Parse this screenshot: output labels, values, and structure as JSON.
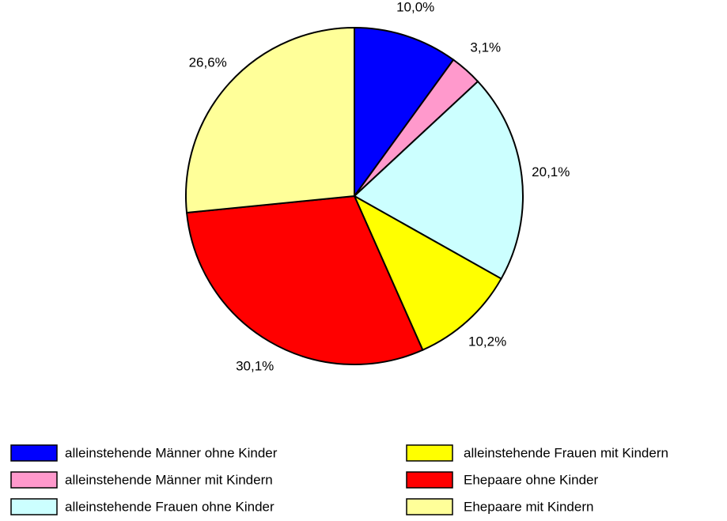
{
  "chart_data": {
    "type": "pie",
    "categories": [
      "alleinstehende Männer ohne Kinder",
      "alleinstehende Männer mit Kindern",
      "alleinstehende Frauen ohne Kinder",
      "alleinstehende Frauen mit Kindern",
      "Ehepaare ohne Kinder",
      "Ehepaare mit Kindern"
    ],
    "values": [
      10.0,
      3.1,
      20.1,
      10.2,
      30.1,
      26.6
    ],
    "value_labels": [
      "10,0%",
      "3,1%",
      "20,1%",
      "10,2%",
      "30,1%",
      "26,6%"
    ],
    "colors": [
      "#0000ff",
      "#ff99cc",
      "#ccffff",
      "#ffff00",
      "#ff0000",
      "#ffff99"
    ]
  }
}
